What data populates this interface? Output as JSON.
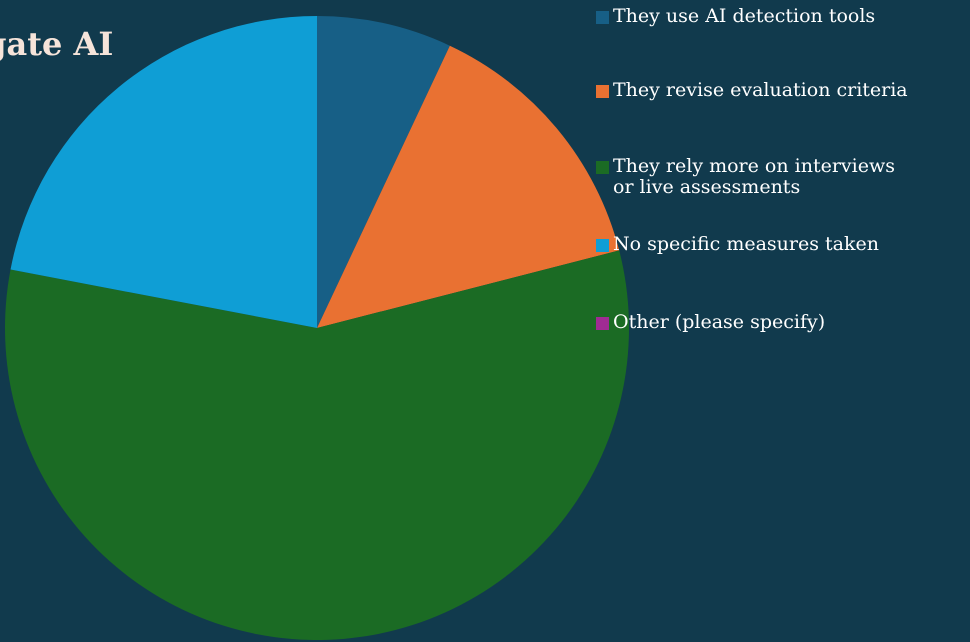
{
  "chart_data": {
    "type": "pie",
    "title": "igate AI",
    "slices": [
      {
        "label": "They use AI detection tools",
        "value": 7,
        "color": "#175f86"
      },
      {
        "label": "They revise evaluation criteria",
        "value": 14,
        "color": "#e97132"
      },
      {
        "label": "They rely more on interviews\nor live assessments",
        "value": 57,
        "color": "#1b6b24"
      },
      {
        "label": "No specific measures taken",
        "value": 22,
        "color": "#0f9ed5"
      },
      {
        "label": "Other (please specify)",
        "value": 0,
        "color": "#a02b93"
      }
    ],
    "legend_position": "right"
  }
}
